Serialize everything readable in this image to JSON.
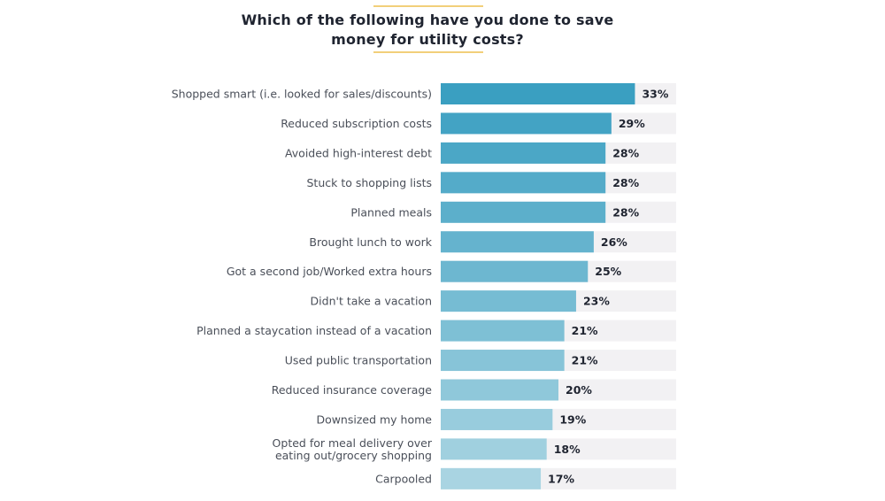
{
  "chart_data": {
    "type": "bar",
    "orientation": "horizontal",
    "title": "Which of the following have you done to save money for utility costs?",
    "title_lines": [
      "Which of the following have you done to save",
      "money for utility costs?"
    ],
    "categories": [
      [
        "Shopped smart (i.e. looked for sales/discounts)"
      ],
      [
        "Reduced subscription costs"
      ],
      [
        "Avoided high-interest debt"
      ],
      [
        "Stuck to shopping lists"
      ],
      [
        "Planned meals"
      ],
      [
        "Brought lunch to work"
      ],
      [
        "Got a second job/Worked extra hours"
      ],
      [
        "Didn't take a vacation"
      ],
      [
        "Planned a staycation instead of a vacation"
      ],
      [
        "Used public transportation"
      ],
      [
        "Reduced insurance coverage"
      ],
      [
        "Downsized my home"
      ],
      [
        "Opted for meal delivery over",
        "eating out/grocery shopping"
      ],
      [
        "Carpooled"
      ]
    ],
    "values": [
      33,
      29,
      28,
      28,
      28,
      26,
      25,
      23,
      21,
      21,
      20,
      19,
      18,
      17
    ],
    "value_labels": [
      "33%",
      "29%",
      "28%",
      "28%",
      "28%",
      "26%",
      "25%",
      "23%",
      "21%",
      "21%",
      "20%",
      "19%",
      "18%",
      "17%"
    ],
    "unit": "%",
    "xlim": [
      0,
      40
    ],
    "xlabel": "",
    "ylabel": "",
    "grid": false,
    "legend": "none",
    "colors": {
      "bar_dark": "#3a9fc1",
      "bar_light": "#a9d4e2",
      "track": "#f2f1f3",
      "title_rule": "#f2cf7a"
    }
  }
}
